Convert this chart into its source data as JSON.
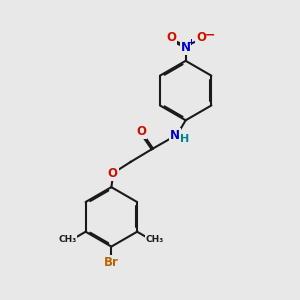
{
  "bg_color": "#e8e8e8",
  "bond_color": "#1a1a1a",
  "O_color": "#cc1100",
  "N_color": "#0000cc",
  "Br_color": "#bb6600",
  "H_color": "#008888",
  "lw": 1.5,
  "dbo": 0.05,
  "fs": 8.5,
  "figsize": [
    3.0,
    3.0
  ],
  "dpi": 100,
  "xlim": [
    0,
    10
  ],
  "ylim": [
    0,
    10
  ],
  "ring_r": 1.0
}
